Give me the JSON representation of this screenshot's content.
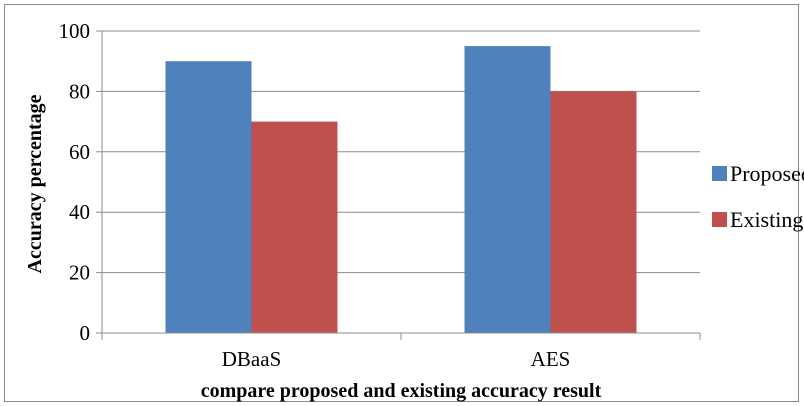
{
  "chart_data": {
    "type": "bar",
    "categories": [
      "DBaaS",
      "AES"
    ],
    "series": [
      {
        "name": "Proposed",
        "values": [
          90,
          95
        ],
        "color": "#4F81BD"
      },
      {
        "name": "Existing",
        "values": [
          70,
          80
        ],
        "color": "#C0504D"
      }
    ],
    "title": "",
    "xlabel": "compare proposed and existing accuracy result",
    "ylabel": "Accuracy percentage",
    "ylim": [
      0,
      100
    ],
    "yticks": [
      0,
      20,
      40,
      60,
      80,
      100
    ],
    "grid": true,
    "legend_position": "right"
  }
}
